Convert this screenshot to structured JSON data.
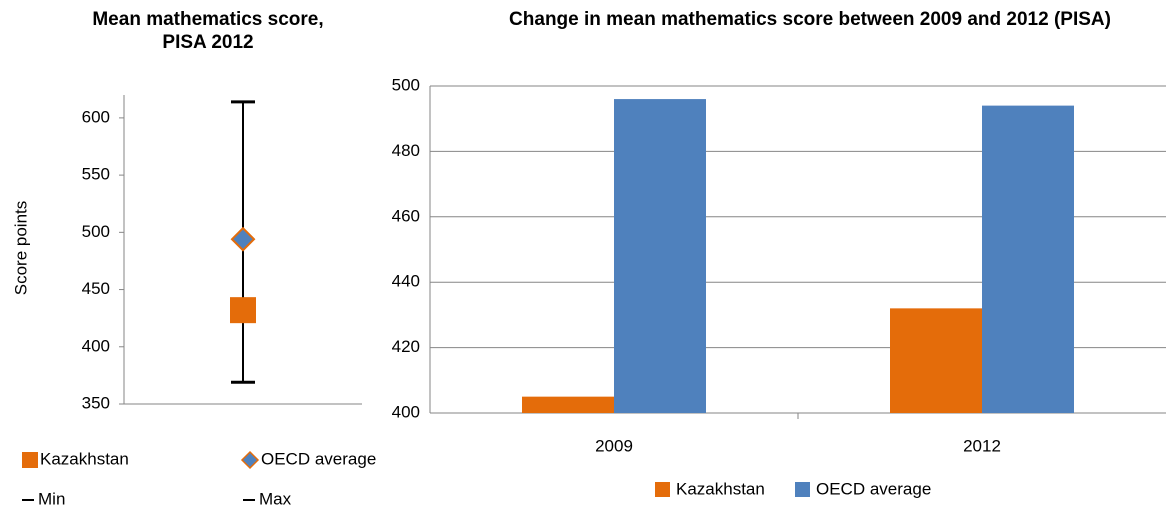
{
  "chart_data": [
    {
      "type": "range",
      "title": "Mean mathematics score, PISA 2012",
      "ylabel": "Score points",
      "ylim": [
        350,
        620
      ],
      "yticks": [
        350,
        400,
        450,
        500,
        550,
        600
      ],
      "series": [
        {
          "name": "Kazakhstan",
          "color": "#e46c0a",
          "values": [
            432
          ]
        },
        {
          "name": "OECD average",
          "color": "#4f81bd",
          "values": [
            494
          ]
        },
        {
          "name": "Min",
          "color": "#000000",
          "values": [
            369
          ]
        },
        {
          "name": "Max",
          "color": "#000000",
          "values": [
            614
          ]
        }
      ]
    },
    {
      "type": "bar",
      "title": "Change in mean mathematics score between 2009 and 2012 (PISA)",
      "categories": [
        "2009",
        "2012"
      ],
      "ylim": [
        400,
        500
      ],
      "yticks": [
        400,
        420,
        440,
        460,
        480,
        500
      ],
      "grid": true,
      "series": [
        {
          "name": "Kazakhstan",
          "color": "#e46c0a",
          "values": [
            405,
            432
          ]
        },
        {
          "name": "OECD average",
          "color": "#4f81bd",
          "values": [
            496,
            494
          ]
        }
      ]
    }
  ]
}
